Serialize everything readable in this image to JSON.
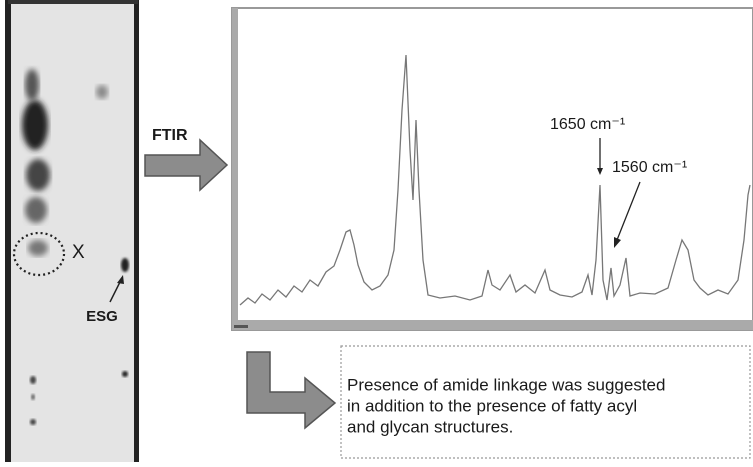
{
  "plate": {
    "spot_label": "X",
    "standard_label": "ESG"
  },
  "method_label": "FTIR",
  "spectrum": {
    "annotations": [
      "1650 cm⁻¹",
      "1560 cm⁻¹"
    ]
  },
  "note": {
    "lines": [
      "Presence of amide linkage was suggested",
      "in addition to the presence of fatty acyl",
      "and glycan structures."
    ]
  }
}
